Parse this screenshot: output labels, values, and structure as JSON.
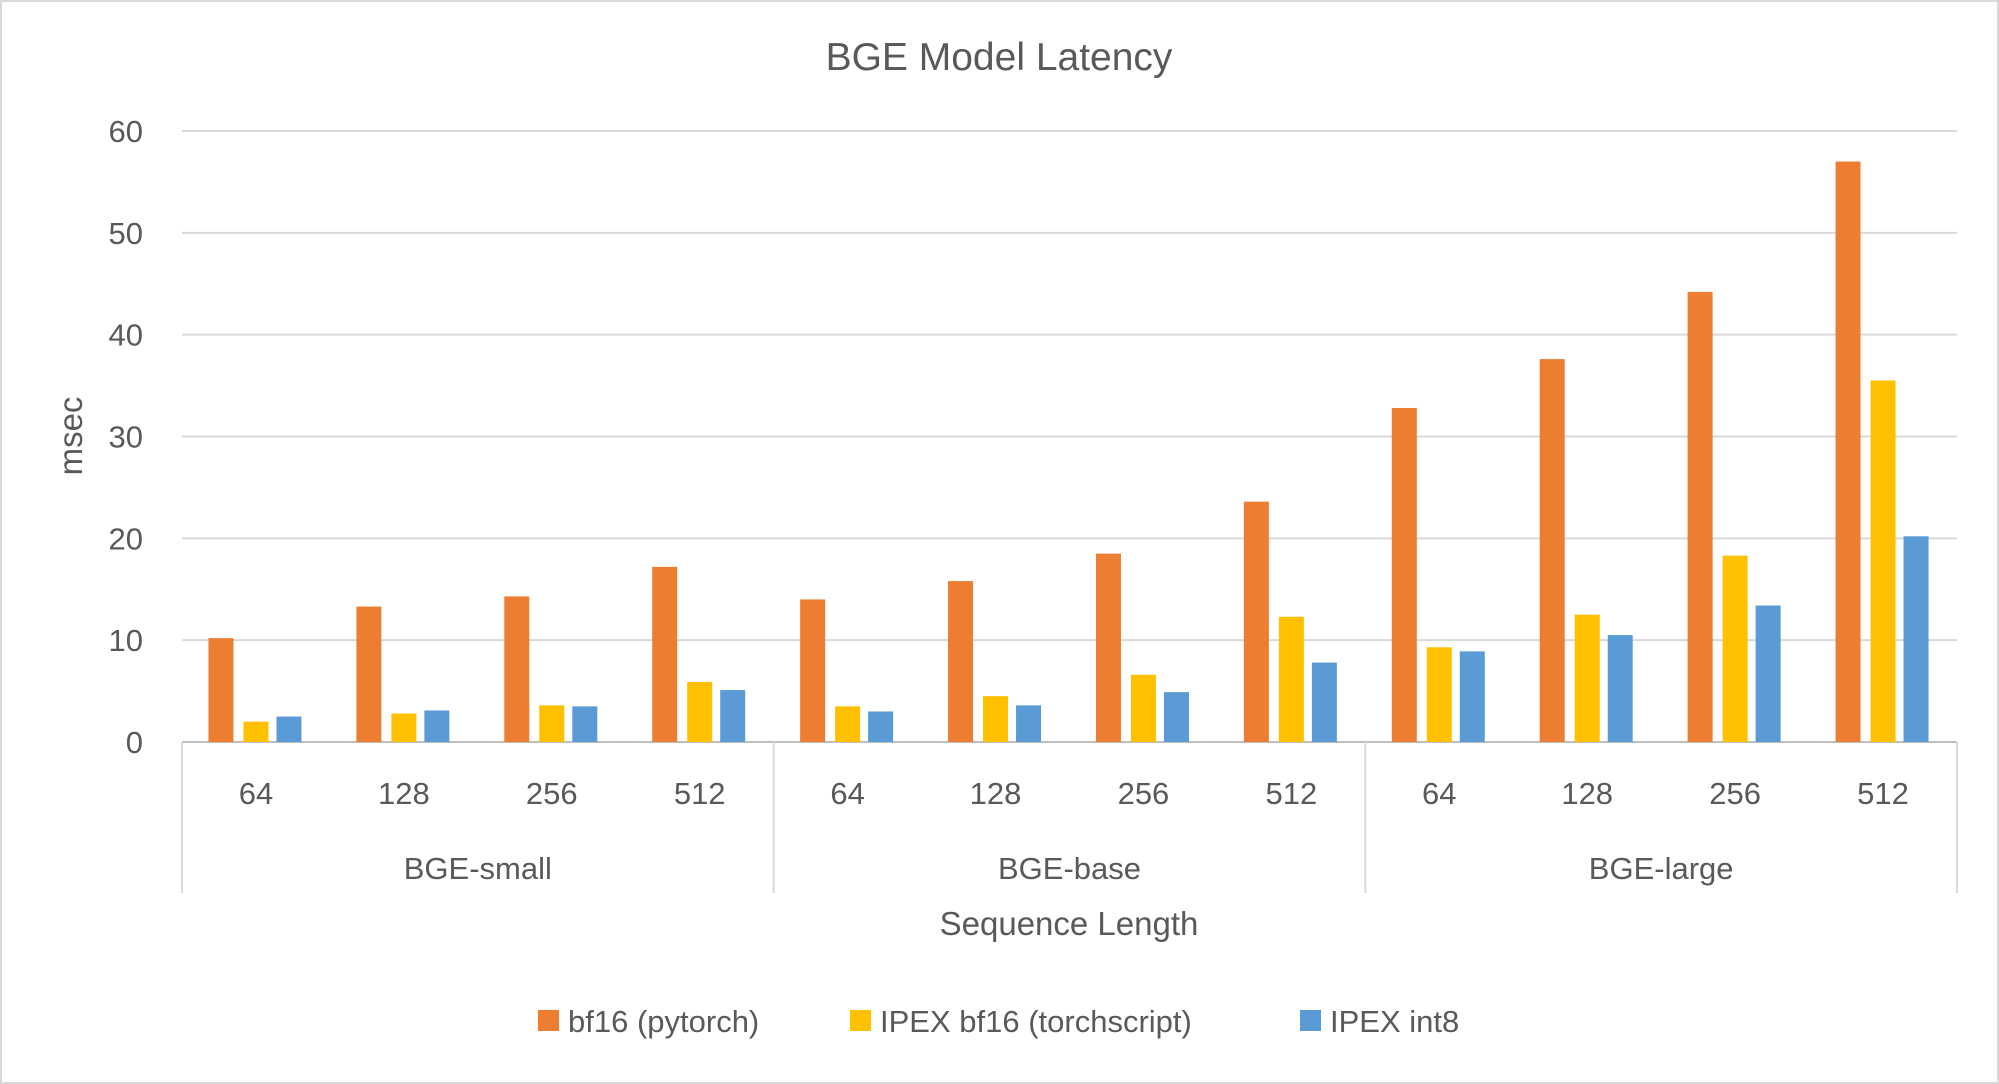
{
  "chart_data": {
    "type": "bar",
    "title": "BGE Model Latency",
    "xlabel": "Sequence Length",
    "ylabel": "msec",
    "ylim": [
      0,
      60
    ],
    "yticks": [
      "0",
      "10",
      "20",
      "30",
      "40",
      "50",
      "60"
    ],
    "grid": true,
    "legend_position": "bottom",
    "groups": [
      {
        "label": "BGE-small",
        "categories": [
          "64",
          "128",
          "256",
          "512"
        ]
      },
      {
        "label": "BGE-base",
        "categories": [
          "64",
          "128",
          "256",
          "512"
        ]
      },
      {
        "label": "BGE-large",
        "categories": [
          "64",
          "128",
          "256",
          "512"
        ]
      }
    ],
    "series": [
      {
        "name": "bf16 (pytorch)",
        "color": "#ED7D31",
        "values": [
          10.2,
          13.3,
          14.3,
          17.2,
          14.0,
          15.8,
          18.5,
          23.6,
          32.8,
          37.6,
          44.2,
          57.0
        ]
      },
      {
        "name": "IPEX bf16 (torchscript)",
        "color": "#FFC000",
        "values": [
          2.0,
          2.8,
          3.6,
          5.9,
          3.5,
          4.5,
          6.6,
          12.3,
          9.3,
          12.5,
          18.3,
          35.5
        ]
      },
      {
        "name": "IPEX int8",
        "color": "#5B9BD5",
        "values": [
          2.5,
          3.1,
          3.5,
          5.1,
          3.0,
          3.6,
          4.9,
          7.8,
          8.9,
          10.5,
          13.4,
          20.2
        ]
      }
    ]
  }
}
